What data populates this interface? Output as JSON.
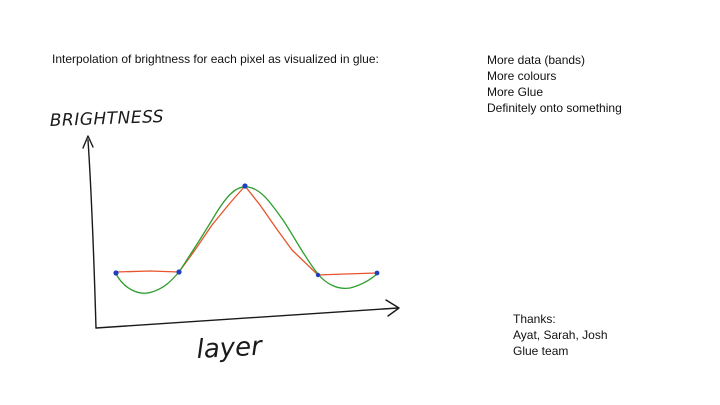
{
  "slide": {
    "heading": "Interpolation of brightness for each pixel as visualized in glue:",
    "notes": [
      "More data (bands)",
      "More colours",
      "More Glue",
      "Definitely onto something"
    ],
    "thanks": {
      "title": "Thanks:",
      "names": "Ayat, Sarah, Josh",
      "team": "Glue team"
    }
  },
  "sketch": {
    "y_axis_label": "BRIGHTNESS",
    "x_axis_label": "layer",
    "line_colors": {
      "linear": "#e8542b",
      "smooth": "#2e9e2e",
      "points": "#1f3fbf",
      "axes": "#1a1a1a"
    }
  }
}
